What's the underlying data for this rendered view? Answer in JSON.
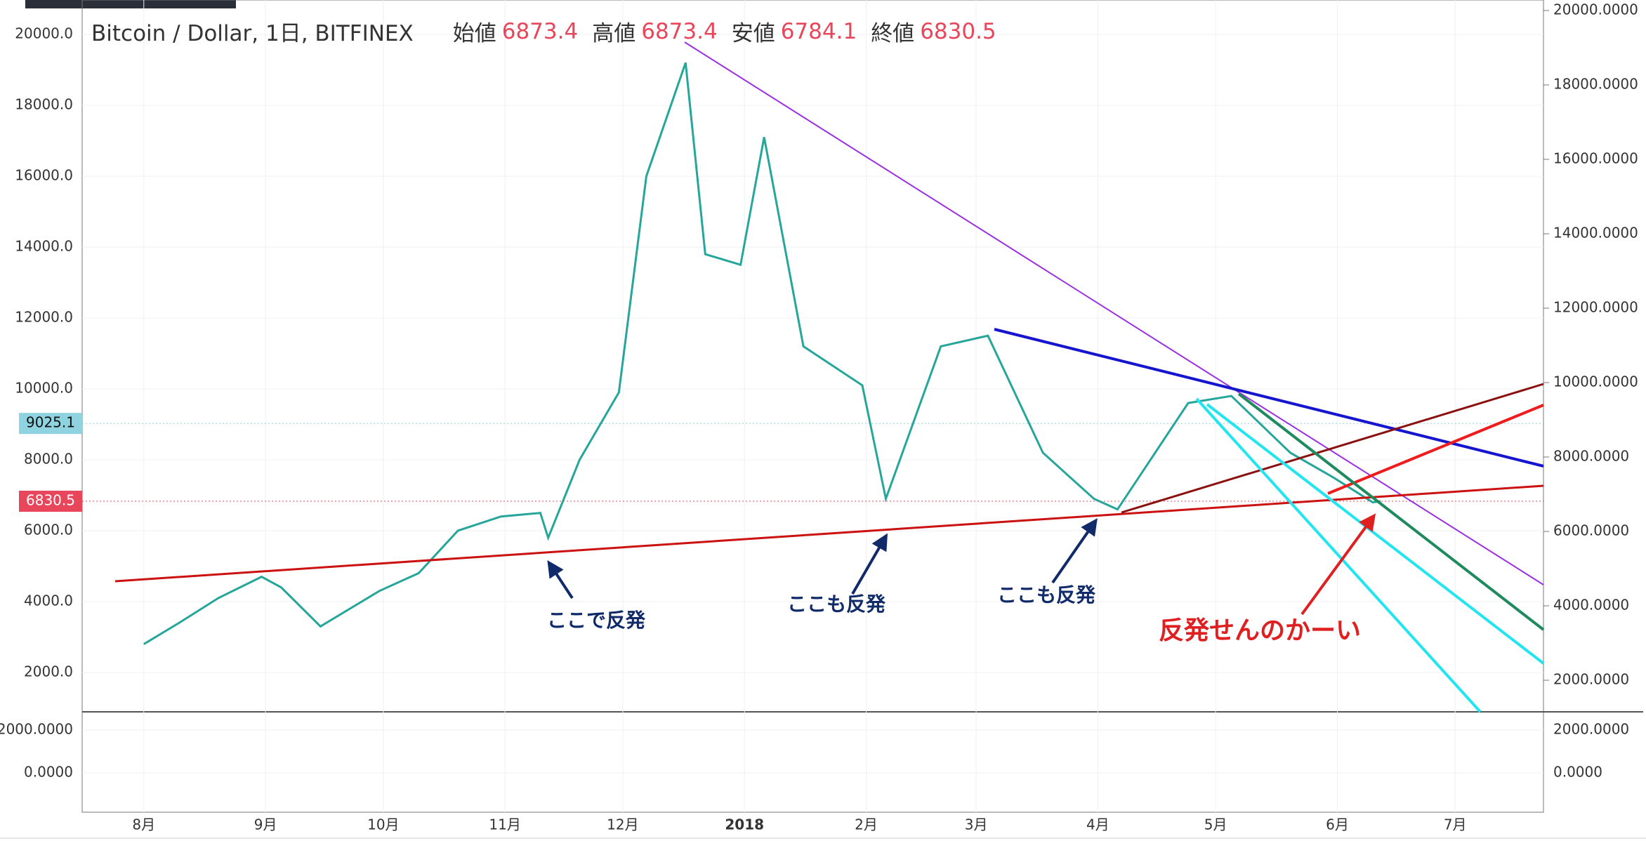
{
  "chart_data": {
    "type": "line",
    "title": "Bitcoin / Dollar, 1日, BITFINEX",
    "ohlc_labels": [
      "始値",
      "高値",
      "安値",
      "終値"
    ],
    "ohlc_values": [
      6873.4,
      6873.4,
      6784.1,
      6830.5
    ],
    "x": [
      0,
      9,
      19,
      30,
      35,
      45,
      60,
      70,
      80,
      91,
      101,
      103,
      111,
      121,
      128,
      138,
      143,
      152,
      158,
      168,
      183,
      189,
      203,
      215,
      229,
      242,
      248,
      266,
      277,
      292,
      303,
      313,
      315
    ],
    "series": [
      {
        "color": "#26a69a",
        "values": [
          2800,
          3400,
          4100,
          4700,
          4400,
          3300,
          4300,
          4800,
          6000,
          6400,
          6500,
          5800,
          8000,
          9900,
          16000,
          19200,
          13800,
          13500,
          17100,
          11200,
          10100,
          6900,
          11200,
          11500,
          8200,
          6900,
          6600,
          9600,
          9800,
          8200,
          7500,
          6800,
          6830.5
        ]
      }
    ],
    "xlim": [
      -15.7,
      356.5
    ],
    "xticks": [
      {
        "value": 0,
        "label": "8月"
      },
      {
        "value": 31,
        "label": "9月"
      },
      {
        "value": 61,
        "label": "10月"
      },
      {
        "value": 92,
        "label": "11月"
      },
      {
        "value": 122,
        "label": "12月"
      },
      {
        "value": 153,
        "label": "2018"
      },
      {
        "value": 184,
        "label": "2月"
      },
      {
        "value": 212,
        "label": "3月"
      },
      {
        "value": 243,
        "label": "4月"
      },
      {
        "value": 273,
        "label": "5月"
      },
      {
        "value": 304,
        "label": "6月"
      },
      {
        "value": 334,
        "label": "7月"
      }
    ],
    "ylim": [
      890,
      20970
    ],
    "yticks": [
      {
        "value": 2000,
        "label": "2000.0"
      },
      {
        "value": 4000,
        "label": "4000.0"
      },
      {
        "value": 6000,
        "label": "6000.0"
      },
      {
        "value": 8000,
        "label": "8000.0"
      },
      {
        "value": 10000,
        "label": "10000.0"
      },
      {
        "value": 12000,
        "label": "12000.0"
      },
      {
        "value": 14000,
        "label": "14000.0"
      },
      {
        "value": 16000,
        "label": "16000.0"
      },
      {
        "value": 18000,
        "label": "18000.0"
      },
      {
        "value": 20000,
        "label": "20000.0"
      }
    ],
    "y2lim": [
      1151,
      20283
    ],
    "y2ticks": [
      {
        "value": 2000,
        "label": "2000.0000"
      },
      {
        "value": 4000,
        "label": "4000.0000"
      },
      {
        "value": 6000,
        "label": "6000.0000"
      },
      {
        "value": 8000,
        "label": "8000.0000"
      },
      {
        "value": 10000,
        "label": "10000.0000"
      },
      {
        "value": 12000,
        "label": "12000.0000"
      },
      {
        "value": 14000,
        "label": "14000.0000"
      },
      {
        "value": 16000,
        "label": "16000.0000"
      },
      {
        "value": 18000,
        "label": "18000.0000"
      },
      {
        "value": 20000,
        "label": "20000.0000"
      }
    ],
    "price_tags": [
      9025.1,
      6830.5
    ],
    "price_tag_colors": [
      "#8fd3e0",
      "#e8465a"
    ],
    "macd_ylim": [
      -1836,
      2787
    ],
    "macd_yticks": [
      {
        "value": 0,
        "label": "0.0000"
      },
      {
        "value": 2000,
        "label": "2000.0000"
      }
    ],
    "annotations": [
      "ここで反発",
      "ここも反発",
      "ここも反発",
      "反発せんのかーい"
    ],
    "grid": true
  }
}
